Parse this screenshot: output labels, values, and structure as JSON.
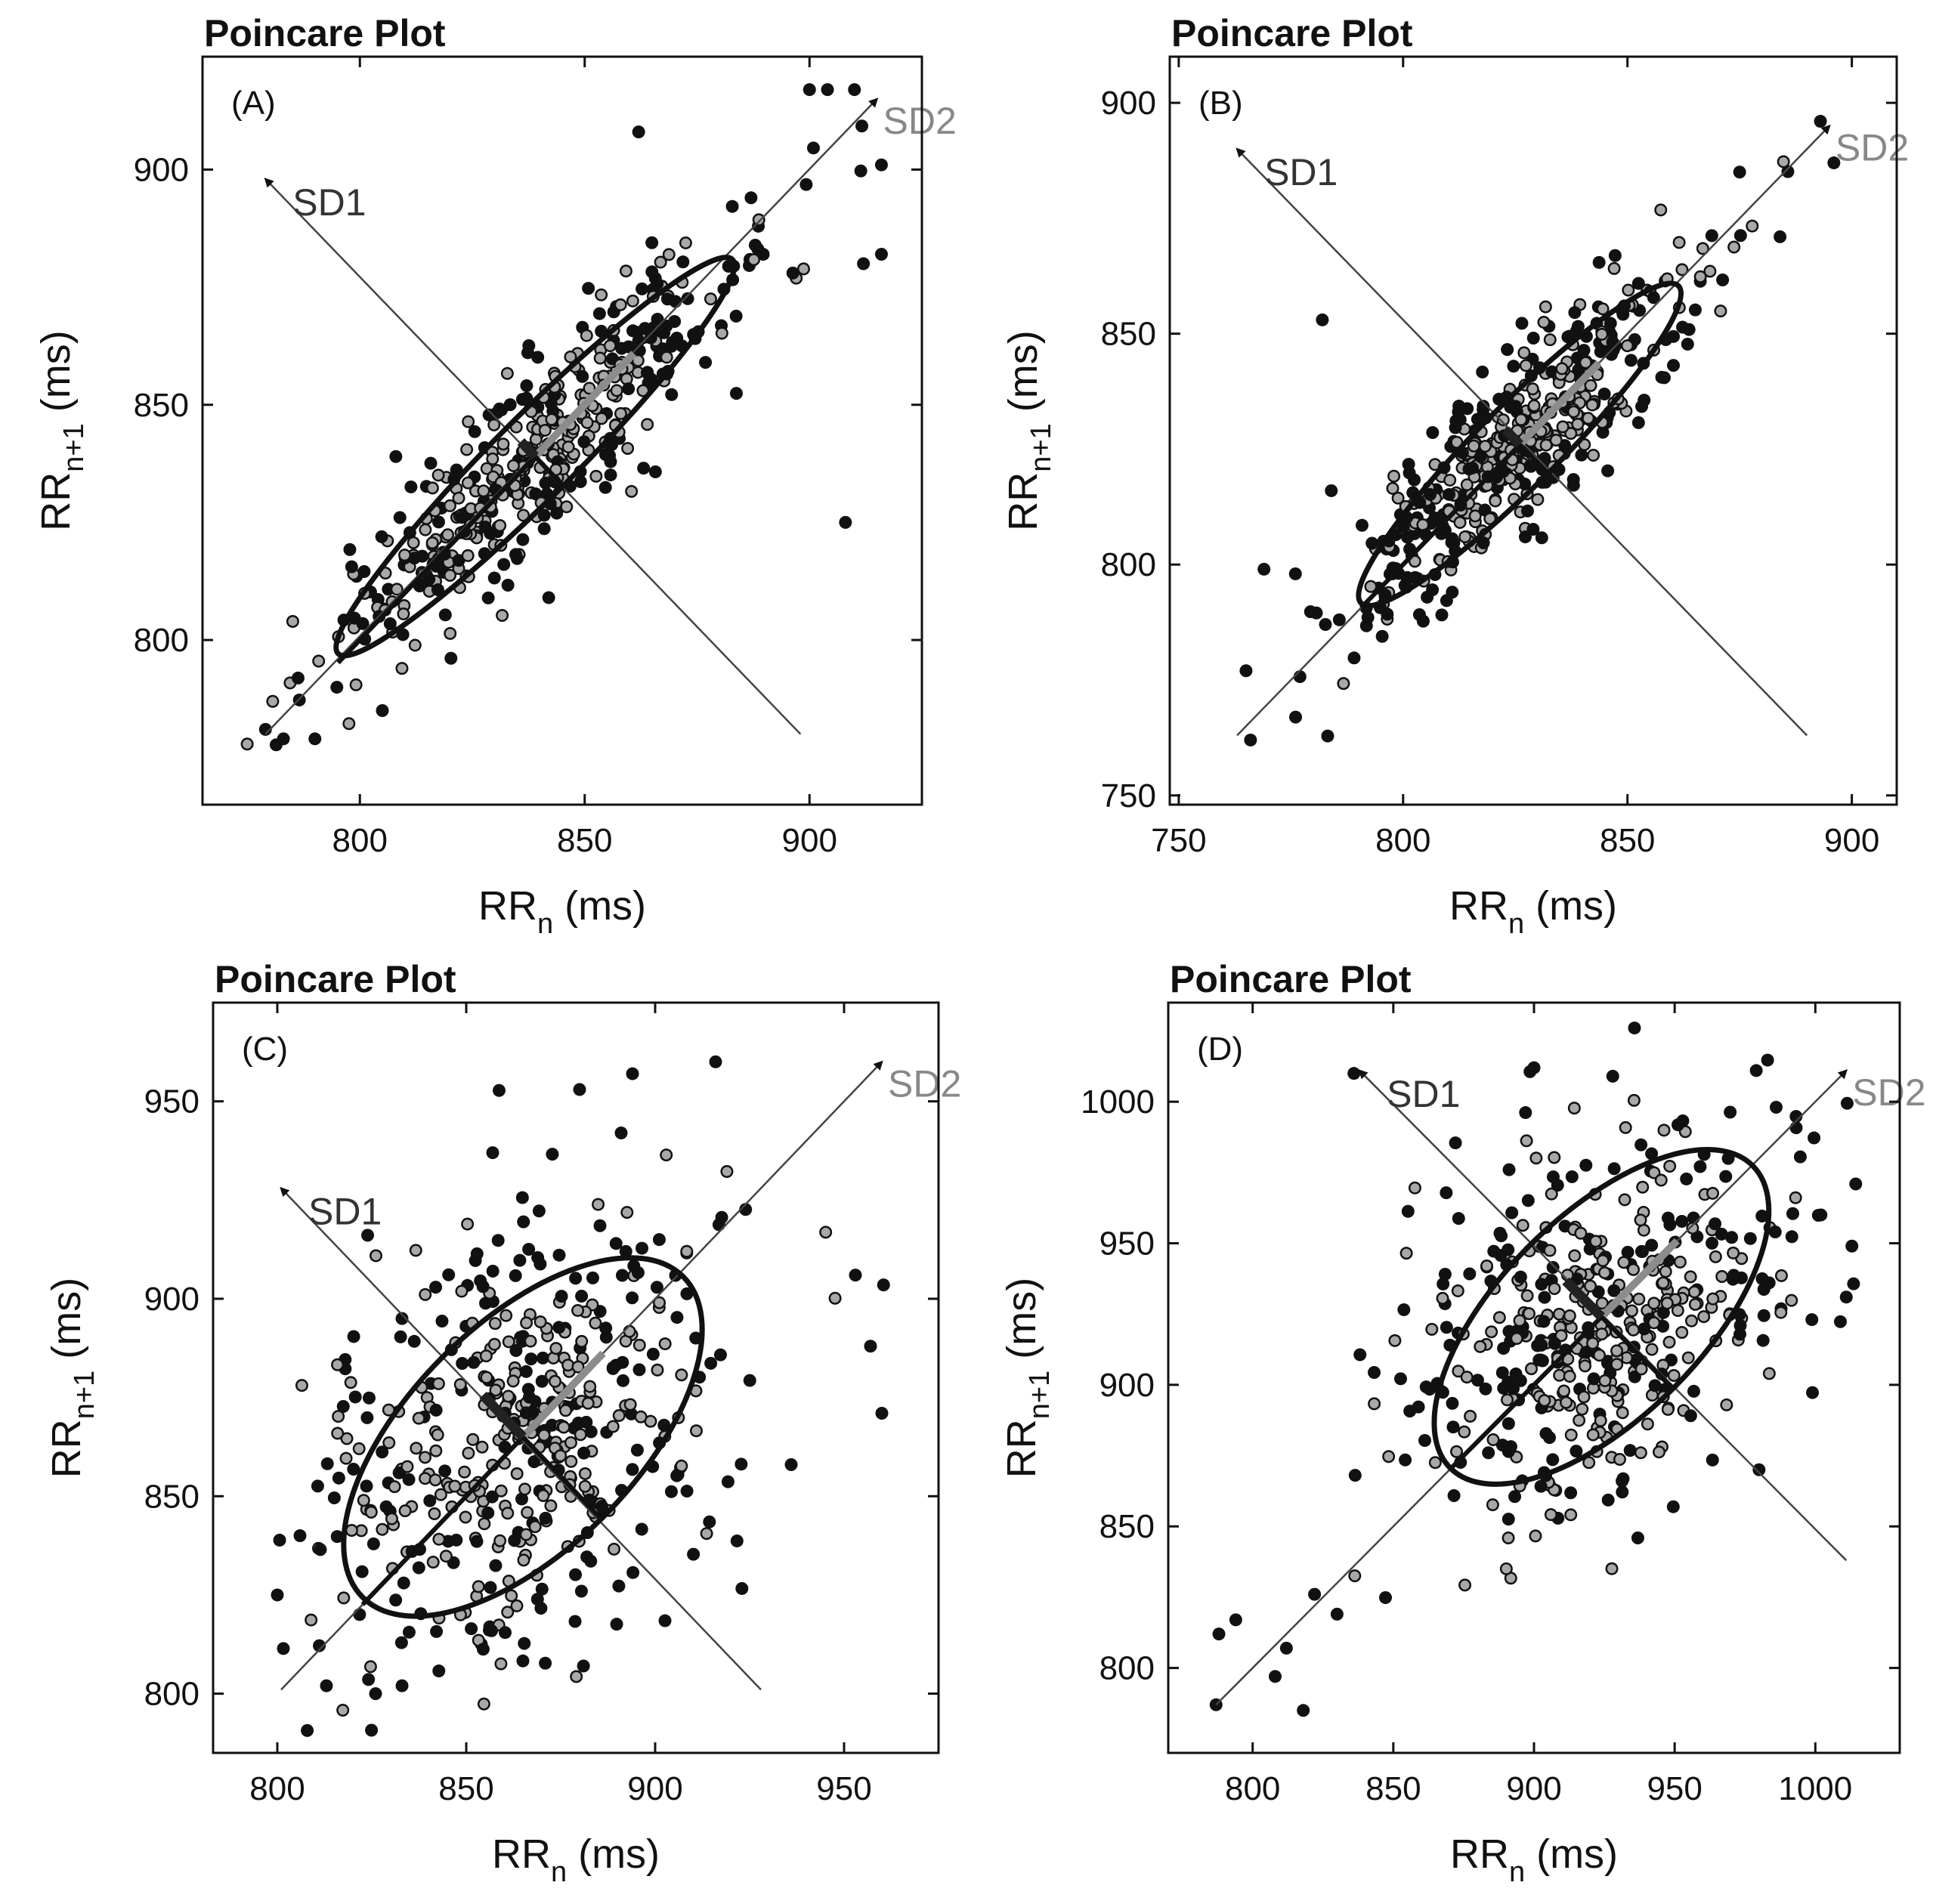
{
  "figure": {
    "panels_order": [
      "A",
      "B",
      "C",
      "D"
    ]
  },
  "chart_data": [
    {
      "type": "scatter",
      "panel": "(A)",
      "title": "Poincare Plot",
      "xlabel": {
        "main": "RR",
        "sub": "n",
        "unit": " (ms)"
      },
      "ylabel": {
        "main": "RR",
        "sub": "n+1",
        "unit": " (ms)"
      },
      "xlim": [
        765,
        925
      ],
      "ylim": [
        765,
        924
      ],
      "xticks": [
        800,
        850,
        900
      ],
      "yticks": [
        800,
        850,
        900
      ],
      "grid": false,
      "center": [
        839,
        839
      ],
      "sd1": 4.5,
      "sd2": 31,
      "sd1_axis": {
        "from": [
          898,
          780
        ],
        "to": [
          779,
          898
        ]
      },
      "sd2_axis": {
        "from": [
          779,
          780
        ],
        "to": [
          915,
          915
        ]
      },
      "sd1_label": "SD1",
      "sd2_label": "SD2",
      "outliers": [
        [
          862,
          908
        ],
        [
          908,
          825
        ],
        [
          916,
          882
        ],
        [
          916,
          901
        ],
        [
          904,
          917
        ],
        [
          910,
          917
        ],
        [
          900,
          917
        ],
        [
          805,
          785
        ],
        [
          790,
          779
        ],
        [
          783,
          779
        ],
        [
          842,
          809
        ],
        [
          808,
          839
        ],
        [
          779,
          781
        ],
        [
          912,
          880
        ],
        [
          887,
          894
        ]
      ]
    },
    {
      "type": "scatter",
      "panel": "(B)",
      "title": "Poincare Plot",
      "xlabel": {
        "main": "RR",
        "sub": "n",
        "unit": " (ms)"
      },
      "ylabel": {
        "main": "RR",
        "sub": "n+1",
        "unit": " (ms)"
      },
      "xlim": [
        748,
        910
      ],
      "ylim": [
        748,
        910
      ],
      "xticks": [
        750,
        800,
        850,
        900
      ],
      "yticks": [
        750,
        800,
        850,
        900
      ],
      "grid": false,
      "center": [
        826,
        826
      ],
      "sd1": 4.5,
      "sd2": 25,
      "sd1_axis": {
        "from": [
          890,
          763
        ],
        "to": [
          763,
          890
        ]
      },
      "sd2_axis": {
        "from": [
          763,
          763
        ],
        "to": [
          895,
          895
        ]
      },
      "sd1_label": "SD1",
      "sd2_label": "SD2",
      "outliers": [
        [
          784,
          816
        ],
        [
          782,
          853
        ],
        [
          769,
          799
        ],
        [
          776,
          798
        ],
        [
          796,
          793
        ],
        [
          893,
          896
        ],
        [
          896,
          887
        ],
        [
          884,
          871
        ],
        [
          875,
          885
        ],
        [
          765,
          777
        ],
        [
          766,
          762
        ]
      ]
    },
    {
      "type": "scatter",
      "panel": "(C)",
      "title": "Poincare Plot",
      "xlabel": {
        "main": "RR",
        "sub": "n",
        "unit": " (ms)"
      },
      "ylabel": {
        "main": "RR",
        "sub": "n+1",
        "unit": " (ms)"
      },
      "xlim": [
        783,
        975
      ],
      "ylim": [
        785,
        975
      ],
      "xticks": [
        800,
        850,
        900,
        950
      ],
      "yticks": [
        800,
        850,
        900,
        950
      ],
      "grid": false,
      "center": [
        865,
        865
      ],
      "sd1": 15,
      "sd2": 30,
      "sd1_axis": {
        "from": [
          928,
          801
        ],
        "to": [
          801,
          928
        ]
      },
      "sd2_axis": {
        "from": [
          801,
          801
        ],
        "to": [
          960,
          960
        ]
      },
      "sd1_label": "SD1",
      "sd2_label": "SD2",
      "outliers": [
        [
          916,
          960
        ],
        [
          880,
          953
        ],
        [
          894,
          957
        ],
        [
          960,
          871
        ],
        [
          957,
          888
        ],
        [
          953,
          906
        ],
        [
          936,
          858
        ],
        [
          826,
          800
        ],
        [
          833,
          802
        ],
        [
          813,
          802
        ],
        [
          800,
          825
        ],
        [
          806,
          840
        ],
        [
          833,
          895
        ],
        [
          857,
          937
        ],
        [
          891,
          942
        ]
      ]
    },
    {
      "type": "scatter",
      "panel": "(D)",
      "title": "Poincare Plot",
      "xlabel": {
        "main": "RR",
        "sub": "n",
        "unit": " (ms)"
      },
      "ylabel": {
        "main": "RR",
        "sub": "n+1",
        "unit": " (ms)"
      },
      "xlim": [
        770,
        1030
      ],
      "ylim": [
        770,
        1035
      ],
      "xticks": [
        800,
        850,
        900,
        950,
        1000
      ],
      "yticks": [
        800,
        850,
        900,
        950,
        1000
      ],
      "grid": false,
      "center": [
        924,
        924
      ],
      "sd1": 18,
      "sd2": 38,
      "sd1_axis": {
        "from": [
          1011,
          838
        ],
        "to": [
          838,
          1011
        ]
      },
      "sd2_axis": {
        "from": [
          787,
          787
        ],
        "to": [
          1011,
          1011
        ]
      },
      "sd1_label": "SD1",
      "sd2_label": "SD2",
      "outliers": [
        [
          900,
          1012
        ],
        [
          928,
          1009
        ],
        [
          979,
          1011
        ],
        [
          1002,
          960
        ],
        [
          1013,
          949
        ],
        [
          1011,
          931
        ],
        [
          980,
          870
        ],
        [
          787,
          787
        ],
        [
          788,
          812
        ],
        [
          794,
          817
        ],
        [
          818,
          785
        ],
        [
          808,
          797
        ],
        [
          812,
          807
        ],
        [
          822,
          826
        ],
        [
          830,
          819
        ],
        [
          836,
          1010
        ]
      ]
    }
  ]
}
